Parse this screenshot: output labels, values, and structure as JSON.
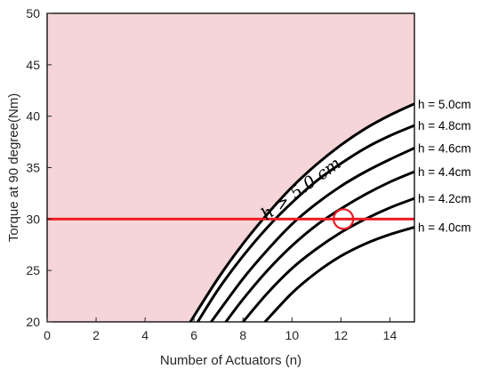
{
  "chart_data": {
    "type": "line",
    "title": "",
    "xlabel": "Number of Actuators (n)",
    "ylabel": "Torque at 90 degree(Nm)",
    "xlim": [
      0,
      15
    ],
    "ylim": [
      20,
      50
    ],
    "xticks": [
      0,
      2,
      4,
      6,
      8,
      10,
      12,
      14
    ],
    "yticks": [
      20,
      25,
      30,
      35,
      40,
      45,
      50
    ],
    "grid": false,
    "legend": "none",
    "series": [
      {
        "name": "h = 5.0cm",
        "x": [
          5.85,
          7,
          8,
          9,
          10,
          11,
          12,
          13,
          14,
          15
        ],
        "y": [
          20,
          24.3,
          27.6,
          30.5,
          33.1,
          35.3,
          37.2,
          38.8,
          40.1,
          41.2
        ]
      },
      {
        "name": "h = 4.8cm",
        "x": [
          6.15,
          7,
          8,
          9,
          10,
          11,
          12,
          13,
          14,
          15
        ],
        "y": [
          20,
          23.2,
          26.4,
          29.2,
          31.6,
          33.7,
          35.4,
          36.9,
          38.1,
          39.1
        ]
      },
      {
        "name": "h = 4.6cm",
        "x": [
          6.7,
          8,
          9,
          10,
          11,
          12,
          13,
          14,
          15
        ],
        "y": [
          20,
          24.2,
          27.0,
          29.5,
          31.5,
          33.2,
          34.6,
          35.8,
          36.9
        ]
      },
      {
        "name": "h = 4.4cm",
        "x": [
          7.3,
          8,
          9,
          10,
          11,
          12,
          13,
          14,
          15
        ],
        "y": [
          20,
          22.2,
          25.0,
          27.4,
          29.4,
          31.0,
          32.4,
          33.6,
          34.6
        ]
      },
      {
        "name": "h = 4.2cm",
        "x": [
          8.0,
          9,
          10,
          11,
          12,
          13,
          14,
          15
        ],
        "y": [
          20,
          22.8,
          25.2,
          27.1,
          28.7,
          30.0,
          31.1,
          32.0
        ]
      },
      {
        "name": "h = 4.0cm",
        "x": [
          8.9,
          10,
          11,
          12,
          13,
          14,
          15
        ],
        "y": [
          20,
          22.8,
          24.8,
          26.4,
          27.6,
          28.5,
          29.2
        ]
      }
    ],
    "threshold": {
      "y": 30,
      "color": "#ee1c24"
    },
    "marker": {
      "x": 12.1,
      "y": 30,
      "shape": "circle",
      "color": "#ee1c24"
    },
    "shaded_region": {
      "label": "h > 5.0 cm",
      "color": "#f5d5d8",
      "bounded_by": "h = 5.0cm"
    },
    "annotation": {
      "text": "h > 5.0 cm",
      "x": 10.5,
      "y": 32.5
    }
  }
}
